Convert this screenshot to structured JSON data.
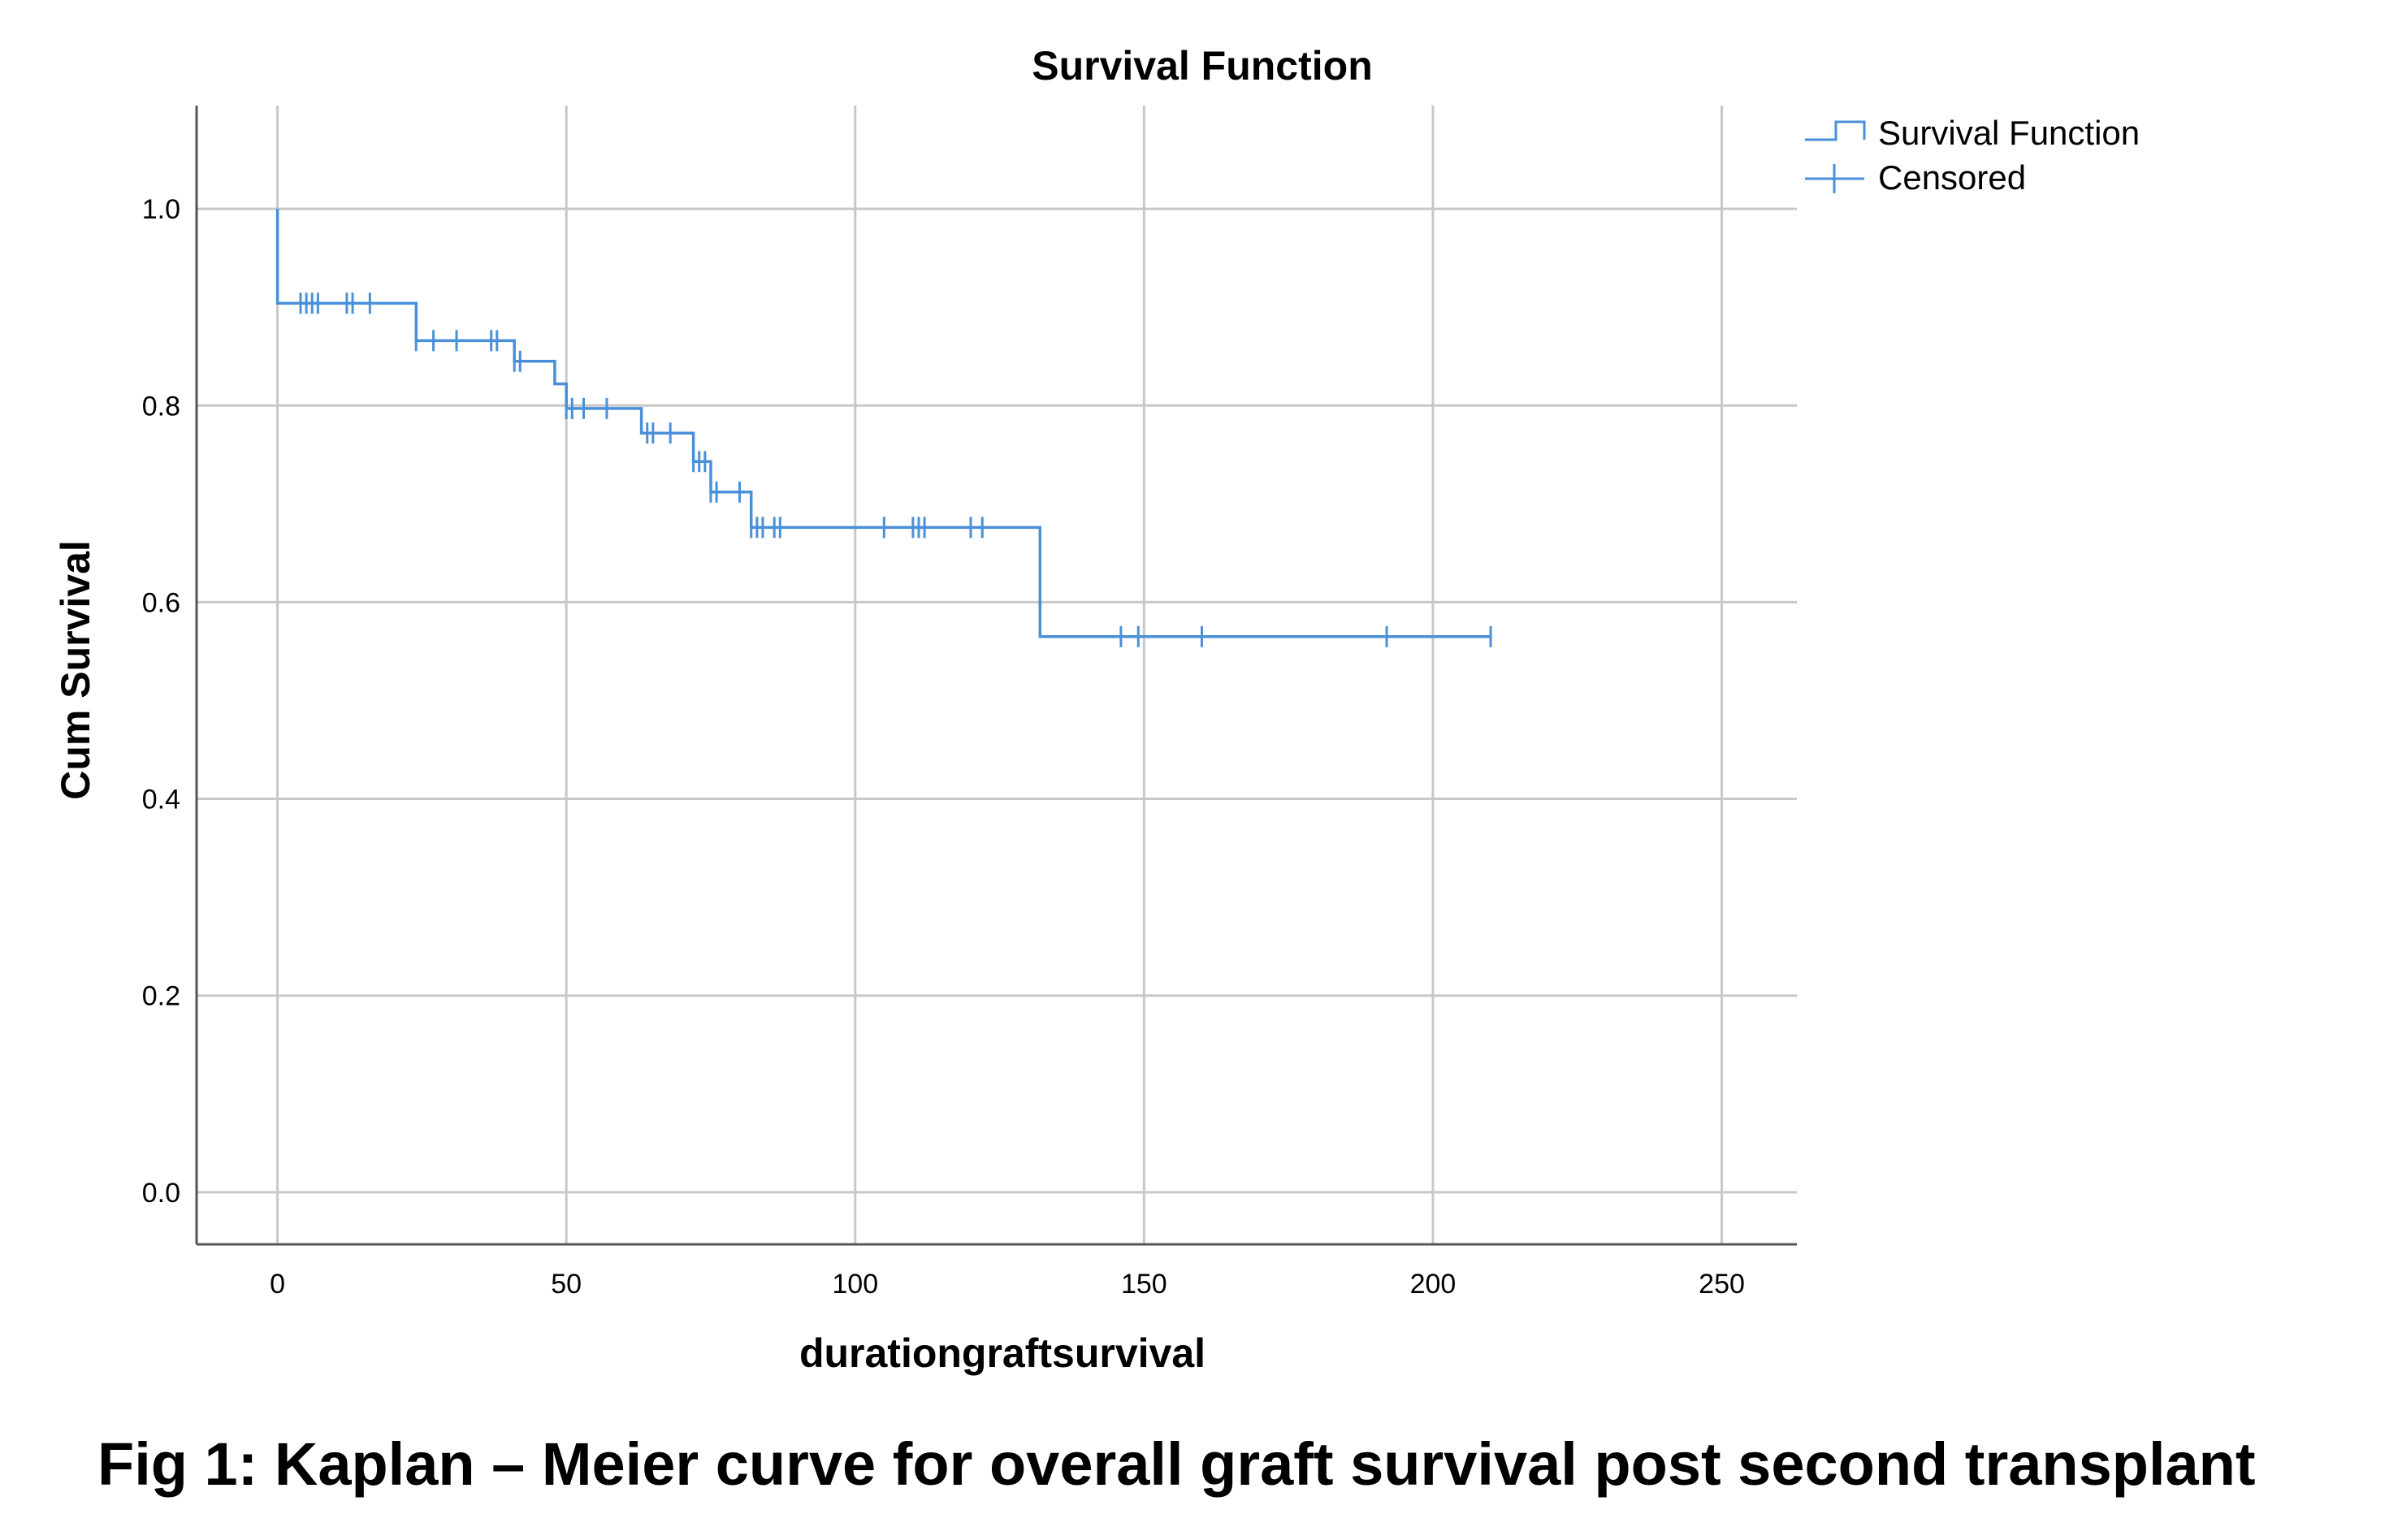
{
  "chart_data": {
    "type": "line",
    "step": true,
    "title": "Survival Function",
    "xlabel": "durationgraftsurvival",
    "ylabel": "Cum Survival",
    "xlim": [
      -14,
      263
    ],
    "ylim": [
      -0.053,
      1.105
    ],
    "x_ticks": [
      0,
      50,
      100,
      150,
      200,
      250
    ],
    "x_tick_labels": [
      "0",
      "50",
      "100",
      "150",
      "200",
      "250"
    ],
    "y_ticks": [
      0.0,
      0.2,
      0.4,
      0.6,
      0.8,
      1.0
    ],
    "y_tick_labels": [
      "0.0",
      "0.2",
      "0.4",
      "0.6",
      "0.8",
      "1.0"
    ],
    "grid": true,
    "legend_position": "top-right",
    "color": "#4a90d9",
    "series": [
      {
        "name": "Survival Function",
        "x": [
          0,
          0,
          24,
          24,
          41,
          41,
          48,
          48,
          50,
          50,
          63,
          63,
          72,
          72,
          75,
          75,
          82,
          82,
          132,
          132,
          210
        ],
        "y": [
          1.0,
          0.904,
          0.904,
          0.866,
          0.866,
          0.845,
          0.845,
          0.822,
          0.822,
          0.797,
          0.797,
          0.772,
          0.772,
          0.743,
          0.743,
          0.712,
          0.712,
          0.676,
          0.676,
          0.565,
          0.565
        ]
      },
      {
        "name": "Censored",
        "x": [
          4,
          5,
          6,
          7,
          12,
          13,
          16,
          24,
          27,
          31,
          37,
          38,
          41,
          42,
          50,
          51,
          53,
          57,
          64,
          65,
          68,
          72,
          73,
          74,
          75,
          76,
          80,
          82,
          83,
          84,
          86,
          87,
          105,
          110,
          111,
          112,
          120,
          122,
          146,
          149,
          160,
          192,
          210
        ],
        "y": [
          0.904,
          0.904,
          0.904,
          0.904,
          0.904,
          0.904,
          0.904,
          0.866,
          0.866,
          0.866,
          0.866,
          0.866,
          0.845,
          0.845,
          0.797,
          0.797,
          0.797,
          0.797,
          0.772,
          0.772,
          0.772,
          0.743,
          0.743,
          0.743,
          0.712,
          0.712,
          0.712,
          0.676,
          0.676,
          0.676,
          0.676,
          0.676,
          0.676,
          0.676,
          0.676,
          0.676,
          0.676,
          0.676,
          0.565,
          0.565,
          0.565,
          0.565,
          0.565
        ]
      }
    ]
  },
  "caption": "Fig 1: Kaplan – Meier curve for overall graft survival post second transplant"
}
